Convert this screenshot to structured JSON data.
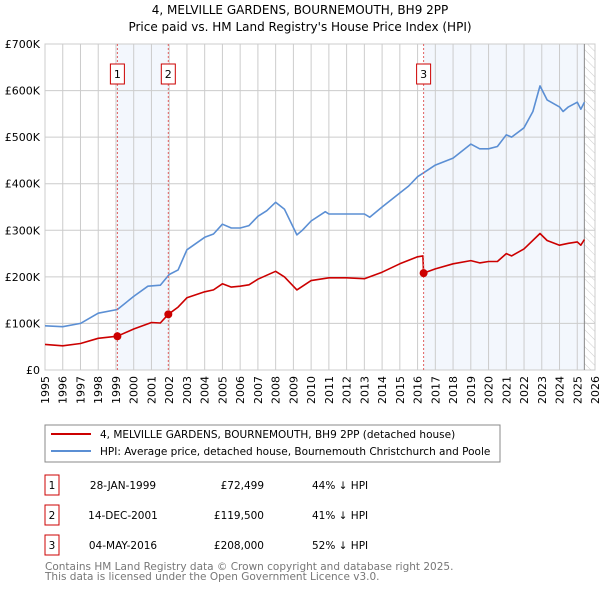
{
  "chart_data": {
    "type": "line",
    "title": "4, MELVILLE GARDENS, BOURNEMOUTH, BH9 2PP",
    "subtitle": "Price paid vs. HM Land Registry's House Price Index (HPI)",
    "xlim": [
      1995,
      2026
    ],
    "ylim": [
      0,
      700000
    ],
    "grid": true,
    "y_ticks": [
      {
        "value": 0,
        "label": "£0"
      },
      {
        "value": 100000,
        "label": "£100K"
      },
      {
        "value": 200000,
        "label": "£200K"
      },
      {
        "value": 300000,
        "label": "£300K"
      },
      {
        "value": 400000,
        "label": "£400K"
      },
      {
        "value": 500000,
        "label": "£500K"
      },
      {
        "value": 600000,
        "label": "£600K"
      },
      {
        "value": 700000,
        "label": "£700K"
      }
    ],
    "x_ticks": [
      "1995",
      "1996",
      "1997",
      "1998",
      "1999",
      "2000",
      "2001",
      "2002",
      "2003",
      "2004",
      "2005",
      "2006",
      "2007",
      "2008",
      "2009",
      "2010",
      "2011",
      "2012",
      "2013",
      "2014",
      "2015",
      "2016",
      "2017",
      "2018",
      "2019",
      "2020",
      "2021",
      "2022",
      "2023",
      "2024",
      "2025",
      "2026"
    ],
    "data_end": 2025.4,
    "series": [
      {
        "name": "4, MELVILLE GARDENS, BOURNEMOUTH, BH9 2PP (detached house)",
        "color": "#cc0000",
        "points": [
          [
            1995,
            55000
          ],
          [
            1996,
            52000
          ],
          [
            1997,
            57000
          ],
          [
            1998,
            68000
          ],
          [
            1999.08,
            72499
          ],
          [
            2000,
            88000
          ],
          [
            2001,
            102000
          ],
          [
            2001.5,
            101000
          ],
          [
            2001.95,
            119500
          ],
          [
            2002.5,
            135000
          ],
          [
            2003,
            155000
          ],
          [
            2004,
            168000
          ],
          [
            2004.5,
            172000
          ],
          [
            2005,
            185000
          ],
          [
            2005.5,
            178000
          ],
          [
            2006,
            180000
          ],
          [
            2006.5,
            183000
          ],
          [
            2007,
            195000
          ],
          [
            2008,
            212000
          ],
          [
            2008.5,
            200000
          ],
          [
            2009.2,
            172000
          ],
          [
            2010,
            192000
          ],
          [
            2011,
            198000
          ],
          [
            2012,
            198000
          ],
          [
            2013,
            196000
          ],
          [
            2014,
            210000
          ],
          [
            2015,
            228000
          ],
          [
            2016,
            243000
          ],
          [
            2016.3,
            245000
          ],
          [
            2016.34,
            208000
          ],
          [
            2017,
            217000
          ],
          [
            2018,
            228000
          ],
          [
            2019,
            235000
          ],
          [
            2019.5,
            230000
          ],
          [
            2020,
            233000
          ],
          [
            2020.5,
            233000
          ],
          [
            2021,
            250000
          ],
          [
            2021.3,
            245000
          ],
          [
            2022,
            260000
          ],
          [
            2022.9,
            293000
          ],
          [
            2023.3,
            278000
          ],
          [
            2024,
            268000
          ],
          [
            2024.5,
            272000
          ],
          [
            2025,
            275000
          ],
          [
            2025.2,
            268000
          ],
          [
            2025.4,
            280000
          ]
        ]
      },
      {
        "name": "HPI: Average price, detached house, Bournemouth Christchurch and Poole",
        "color": "#5b8fd4",
        "points": [
          [
            1995,
            95000
          ],
          [
            1996,
            93000
          ],
          [
            1997,
            100000
          ],
          [
            1998,
            122000
          ],
          [
            1999.08,
            130000
          ],
          [
            2000,
            158000
          ],
          [
            2000.8,
            180000
          ],
          [
            2001.5,
            182000
          ],
          [
            2002,
            205000
          ],
          [
            2002.5,
            215000
          ],
          [
            2003,
            258000
          ],
          [
            2004,
            285000
          ],
          [
            2004.5,
            292000
          ],
          [
            2005,
            313000
          ],
          [
            2005.5,
            305000
          ],
          [
            2006,
            305000
          ],
          [
            2006.5,
            310000
          ],
          [
            2007,
            330000
          ],
          [
            2007.5,
            342000
          ],
          [
            2008,
            360000
          ],
          [
            2008.5,
            345000
          ],
          [
            2009.2,
            290000
          ],
          [
            2009.5,
            300000
          ],
          [
            2010,
            320000
          ],
          [
            2010.8,
            340000
          ],
          [
            2011,
            335000
          ],
          [
            2012,
            335000
          ],
          [
            2013,
            335000
          ],
          [
            2013.3,
            328000
          ],
          [
            2014,
            350000
          ],
          [
            2015,
            380000
          ],
          [
            2015.5,
            395000
          ],
          [
            2016,
            415000
          ],
          [
            2016.4,
            425000
          ],
          [
            2017,
            440000
          ],
          [
            2018,
            455000
          ],
          [
            2019,
            485000
          ],
          [
            2019.5,
            475000
          ],
          [
            2020,
            475000
          ],
          [
            2020.5,
            480000
          ],
          [
            2021,
            505000
          ],
          [
            2021.3,
            500000
          ],
          [
            2022,
            520000
          ],
          [
            2022.5,
            555000
          ],
          [
            2022.9,
            610000
          ],
          [
            2023.3,
            580000
          ],
          [
            2024,
            565000
          ],
          [
            2024.2,
            555000
          ],
          [
            2024.5,
            565000
          ],
          [
            2025,
            575000
          ],
          [
            2025.2,
            560000
          ],
          [
            2025.4,
            575000
          ]
        ]
      }
    ],
    "sales": [
      {
        "id": "1",
        "x": 1999.08,
        "price": 72499,
        "date": "28-JAN-1999",
        "price_label": "£72,499",
        "hpi_label": "44% ↓ HPI"
      },
      {
        "id": "2",
        "x": 2001.95,
        "price": 119500,
        "date": "14-DEC-2001",
        "price_label": "£119,500",
        "hpi_label": "41% ↓ HPI"
      },
      {
        "id": "3",
        "x": 2016.34,
        "price": 208000,
        "date": "04-MAY-2016",
        "price_label": "£208,000",
        "hpi_label": "52% ↓ HPI"
      }
    ],
    "legend_placement": "below"
  },
  "footer": {
    "line1": "Contains HM Land Registry data © Crown copyright and database right 2025.",
    "line2": "This data is licensed under the Open Government Licence v3.0."
  }
}
